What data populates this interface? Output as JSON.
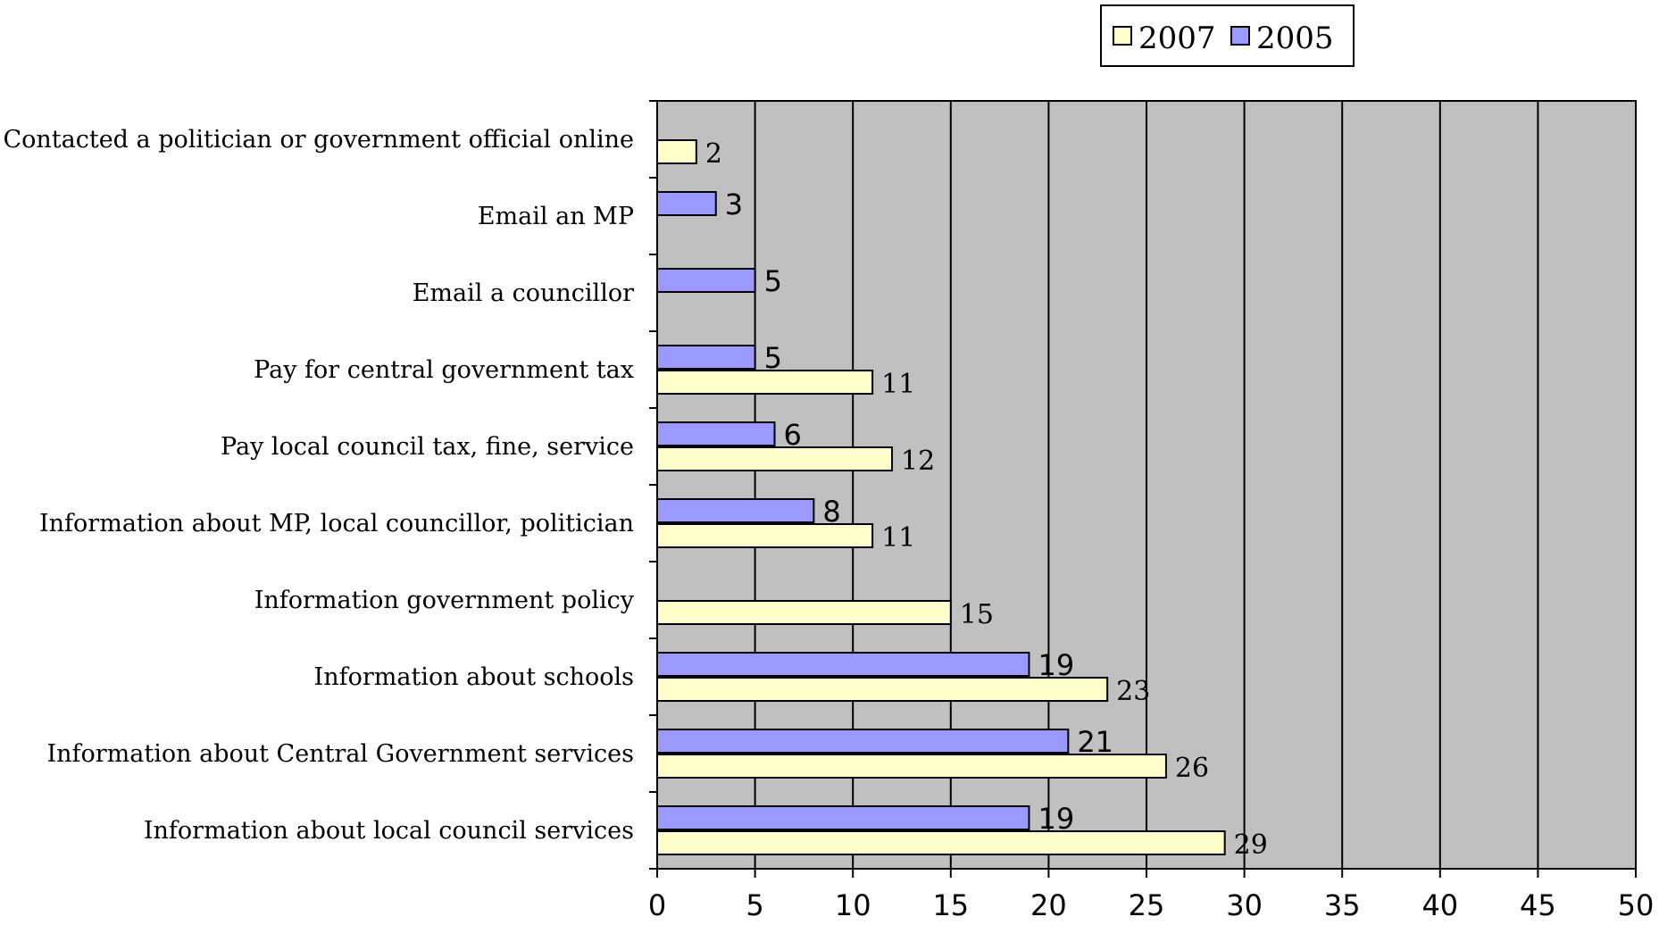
{
  "chart_data": {
    "type": "bar",
    "orientation": "horizontal",
    "categories": [
      "Information about local council services",
      "Information about Central Government services",
      "Information about schools",
      "Information government policy",
      "Information about MP, local councillor, politician",
      "Pay local council tax, fine, service",
      "Pay for central government tax",
      "Email a councillor",
      "Email an MP",
      "Contacted a politician or government official online"
    ],
    "series": [
      {
        "name": "2007",
        "color": "#ffffcc",
        "values": [
          29,
          26,
          23,
          15,
          11,
          12,
          11,
          null,
          null,
          2
        ]
      },
      {
        "name": "2005",
        "color": "#9999ff",
        "values": [
          19,
          21,
          19,
          null,
          8,
          6,
          5,
          5,
          3,
          null
        ]
      }
    ],
    "xlim": [
      0,
      50
    ],
    "x_ticks": [
      0,
      5,
      10,
      15,
      20,
      25,
      30,
      35,
      40,
      45,
      50
    ],
    "grid": "vertical",
    "plot_background": "#c0c0c0",
    "legend_position": "top-right",
    "legend_order": [
      "2007",
      "2005"
    ],
    "data_labels": true,
    "title": "",
    "xlabel": "",
    "ylabel": ""
  }
}
